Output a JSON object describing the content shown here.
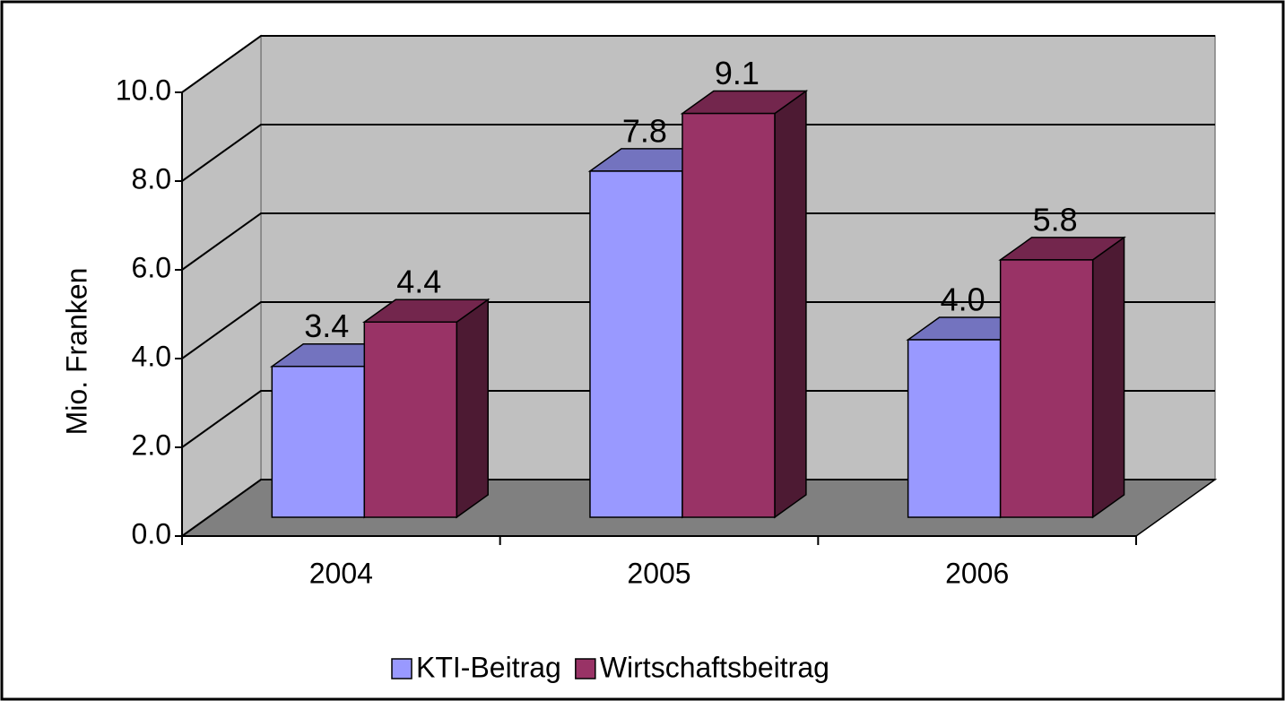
{
  "chart_data": {
    "type": "bar3d",
    "categories": [
      "2004",
      "2005",
      "2006"
    ],
    "series": [
      {
        "name": "KTI-Beitrag",
        "color": "#9999ff",
        "values": [
          3.4,
          7.8,
          4.0
        ],
        "value_labels": [
          "3.4",
          "7.8",
          "4.0"
        ]
      },
      {
        "name": "Wirtschaftsbeitrag",
        "color": "#993366",
        "values": [
          4.4,
          9.1,
          5.8
        ],
        "value_labels": [
          "4.4",
          "9.1",
          "5.8"
        ]
      }
    ],
    "ylabel": "Mio. Franken",
    "ylim": [
      0,
      10
    ],
    "yticks": [
      {
        "value": 0,
        "label": "0.0"
      },
      {
        "value": 2,
        "label": "2.0"
      },
      {
        "value": 4,
        "label": "4.0"
      },
      {
        "value": 6,
        "label": "6.0"
      },
      {
        "value": 8,
        "label": "8.0"
      },
      {
        "value": 10,
        "label": "10.0"
      }
    ],
    "grid": true,
    "legend": "bottom"
  }
}
